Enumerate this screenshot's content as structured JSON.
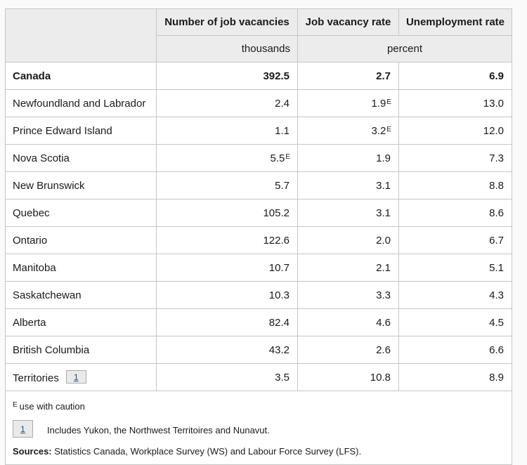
{
  "table": {
    "header": {
      "col_vacancies": "Number of job vacancies",
      "col_vacancy_rate": "Job vacancy rate",
      "col_unemployment": "Unemployment rate",
      "unit_thousands": "thousands",
      "unit_percent": "percent"
    },
    "rows": [
      {
        "label": "Canada",
        "cells": [
          {
            "v": "392.5"
          },
          {
            "v": "2.7"
          },
          {
            "v": "6.9"
          }
        ]
      },
      {
        "label": "Newfoundland and Labrador",
        "cells": [
          {
            "v": "2.4"
          },
          {
            "v": "1.9",
            "f": "E"
          },
          {
            "v": "13.0"
          }
        ]
      },
      {
        "label": "Prince Edward Island",
        "cells": [
          {
            "v": "1.1"
          },
          {
            "v": "3.2",
            "f": "E"
          },
          {
            "v": "12.0"
          }
        ]
      },
      {
        "label": "Nova Scotia",
        "cells": [
          {
            "v": "5.5",
            "f": "E"
          },
          {
            "v": "1.9"
          },
          {
            "v": "7.3"
          }
        ]
      },
      {
        "label": "New Brunswick",
        "cells": [
          {
            "v": "5.7"
          },
          {
            "v": "3.1"
          },
          {
            "v": "8.8"
          }
        ]
      },
      {
        "label": "Quebec",
        "cells": [
          {
            "v": "105.2"
          },
          {
            "v": "3.1"
          },
          {
            "v": "8.6"
          }
        ]
      },
      {
        "label": "Ontario",
        "cells": [
          {
            "v": "122.6"
          },
          {
            "v": "2.0"
          },
          {
            "v": "6.7"
          }
        ]
      },
      {
        "label": "Manitoba",
        "cells": [
          {
            "v": "10.7"
          },
          {
            "v": "2.1"
          },
          {
            "v": "5.1"
          }
        ]
      },
      {
        "label": "Saskatchewan",
        "cells": [
          {
            "v": "10.3"
          },
          {
            "v": "3.3"
          },
          {
            "v": "4.3"
          }
        ]
      },
      {
        "label": "Alberta",
        "cells": [
          {
            "v": "82.4"
          },
          {
            "v": "4.6"
          },
          {
            "v": "4.5"
          }
        ]
      },
      {
        "label": "British Columbia",
        "cells": [
          {
            "v": "43.2"
          },
          {
            "v": "2.6"
          },
          {
            "v": "6.6"
          }
        ]
      },
      {
        "label": "Territories",
        "footnote_ref": "1",
        "cells": [
          {
            "v": "3.5"
          },
          {
            "v": "10.8"
          },
          {
            "v": "8.9"
          }
        ]
      }
    ],
    "footer": {
      "caution_flag": "E",
      "caution_text": "use with caution",
      "footnote_ref": "1",
      "footnote_text": "Includes Yukon, the Northwest Territoires and Nunavut.",
      "sources_label": "Sources:",
      "sources_text": " Statistics Canada, Workplace Survey (WS) and Labour Force Survey (LFS)."
    }
  },
  "colors": {
    "page_bg": "#fafafa",
    "header_bg": "#ececec",
    "border": "#c6c6c6",
    "footnote_link": "#2b4d6f"
  }
}
